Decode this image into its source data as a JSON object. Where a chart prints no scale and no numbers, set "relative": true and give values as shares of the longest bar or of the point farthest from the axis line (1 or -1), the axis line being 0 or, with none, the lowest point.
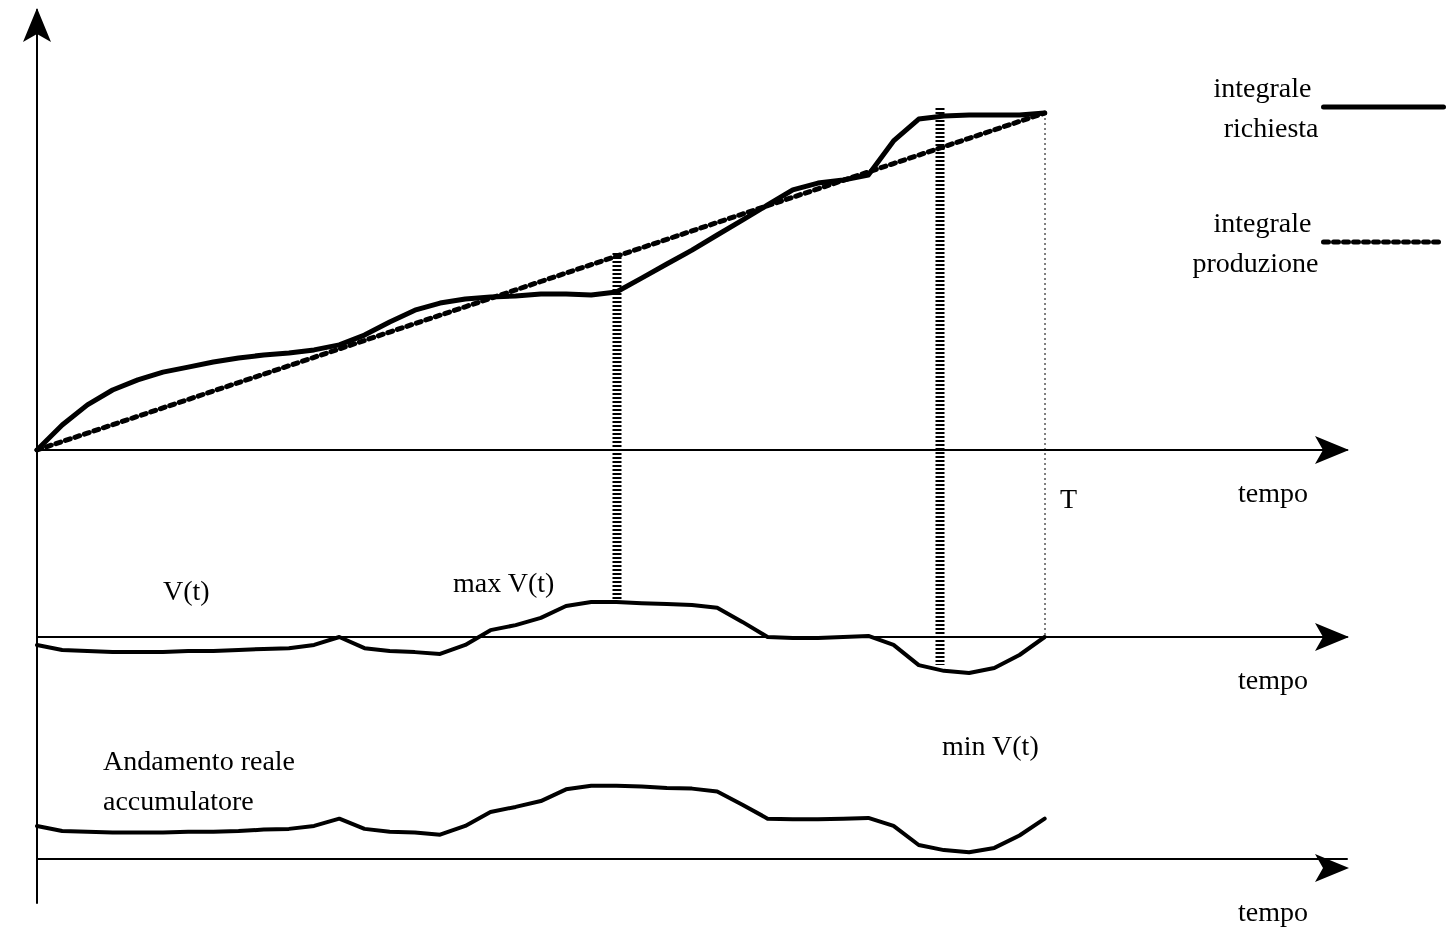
{
  "chart_data": [
    {
      "type": "line",
      "relative": true,
      "xlabel": "tempo",
      "legend": "top right",
      "marker": "none",
      "categories": [
        null,
        null,
        null,
        null,
        null,
        null,
        null,
        null,
        null,
        null,
        null,
        null,
        null,
        null,
        null,
        null,
        null,
        null,
        null,
        null,
        null,
        null,
        null,
        null,
        null,
        null,
        null,
        null,
        null,
        null,
        null,
        null,
        null,
        null,
        null,
        null,
        null,
        null,
        null,
        null,
        null,
        null,
        null,
        null,
        null,
        null,
        null,
        null,
        null,
        null,
        null,
        null,
        null
      ],
      "annotations": [
        "T"
      ],
      "series": [
        {
          "name": "integrale richiesta",
          "color": "#000000",
          "line_style": "solid",
          "values": [
            0,
            0.074,
            0.134,
            0.178,
            0.208,
            0.231,
            0.246,
            0.261,
            0.273,
            0.282,
            0.288,
            0.297,
            0.312,
            0.341,
            0.38,
            0.415,
            0.436,
            0.448,
            0.454,
            0.457,
            0.463,
            0.463,
            0.46,
            0.469,
            0.51,
            0.552,
            0.593,
            0.638,
            0.682,
            0.727,
            0.772,
            0.792,
            0.801,
            0.816,
            0.917,
            0.982,
            0.991,
            0.994,
            0.994,
            0.994,
            1,
            null,
            null,
            null,
            null,
            null,
            null,
            null,
            null,
            null,
            null,
            null,
            null
          ]
        },
        {
          "name": "integrale produzione",
          "color": "#000000",
          "line_style": "dotted",
          "values": [
            0,
            0.025,
            0.05,
            0.075,
            0.1,
            0.125,
            0.15,
            0.175,
            0.2,
            0.225,
            0.25,
            0.275,
            0.3,
            0.325,
            0.35,
            0.375,
            0.4,
            0.425,
            0.45,
            0.475,
            0.5,
            0.525,
            0.55,
            0.575,
            0.6,
            0.625,
            0.65,
            0.675,
            0.7,
            0.725,
            0.75,
            0.775,
            0.8,
            0.825,
            0.85,
            0.875,
            0.9,
            0.925,
            0.95,
            0.975,
            1,
            null,
            null,
            null,
            null,
            null,
            null,
            null,
            null,
            null,
            null,
            null,
            null
          ]
        }
      ],
      "grid": false
    },
    {
      "type": "line",
      "relative": true,
      "xlabel": "tempo",
      "marker": "none",
      "categories": [
        null,
        null,
        null,
        null,
        null,
        null,
        null,
        null,
        null,
        null,
        null,
        null,
        null,
        null,
        null,
        null,
        null,
        null,
        null,
        null,
        null,
        null,
        null,
        null,
        null,
        null,
        null,
        null,
        null,
        null,
        null,
        null,
        null,
        null,
        null,
        null,
        null,
        null,
        null,
        null,
        null,
        null,
        null,
        null,
        null,
        null,
        null,
        null,
        null,
        null,
        null,
        null,
        null
      ],
      "series": [
        {
          "color": "#000000",
          "values": [
            -0.22,
            -0.36,
            -0.39,
            -0.42,
            -0.42,
            -0.42,
            -0.39,
            -0.39,
            -0.36,
            -0.33,
            -0.31,
            -0.22,
            0,
            -0.31,
            -0.39,
            -0.42,
            -0.47,
            -0.22,
            0.19,
            0.33,
            0.53,
            0.86,
            0.97,
            0.97,
            0.94,
            0.92,
            0.89,
            0.81,
            0.42,
            0,
            -0.03,
            -0.03,
            0,
            0.03,
            -0.22,
            -0.78,
            -0.94,
            -1,
            -0.86,
            -0.5,
            0,
            null,
            null,
            null,
            null,
            null,
            null,
            null,
            null,
            null,
            null,
            null,
            null
          ]
        }
      ],
      "annotations": [
        "V(t)",
        "max V(t)",
        "min V(t)"
      ]
    },
    {
      "type": "line",
      "relative": true,
      "xlabel": "tempo",
      "marker": "none",
      "categories": [
        null,
        null,
        null,
        null,
        null,
        null,
        null,
        null,
        null,
        null,
        null,
        null,
        null,
        null,
        null,
        null,
        null,
        null,
        null,
        null,
        null,
        null,
        null,
        null,
        null,
        null,
        null,
        null,
        null,
        null,
        null,
        null,
        null,
        null,
        null,
        null,
        null,
        null,
        null,
        null,
        null,
        null,
        null,
        null,
        null,
        null,
        null,
        null,
        null,
        null,
        null,
        null,
        null
      ],
      "series": [
        {
          "color": "#000000",
          "values": [
            0.45,
            0.38,
            0.37,
            0.36,
            0.36,
            0.36,
            0.37,
            0.37,
            0.38,
            0.4,
            0.41,
            0.45,
            0.55,
            0.41,
            0.37,
            0.36,
            0.33,
            0.45,
            0.64,
            0.71,
            0.79,
            0.95,
            1,
            1,
            0.99,
            0.97,
            0.96,
            0.92,
            0.74,
            0.55,
            0.54,
            0.54,
            0.55,
            0.56,
            0.45,
            0.19,
            0.12,
            0.09,
            0.15,
            0.32,
            0.55,
            null,
            null,
            null,
            null,
            null,
            null,
            null,
            null,
            null,
            null,
            null,
            null
          ]
        }
      ],
      "annotations": [
        "Andamento reale accumulatore"
      ]
    }
  ]
}
